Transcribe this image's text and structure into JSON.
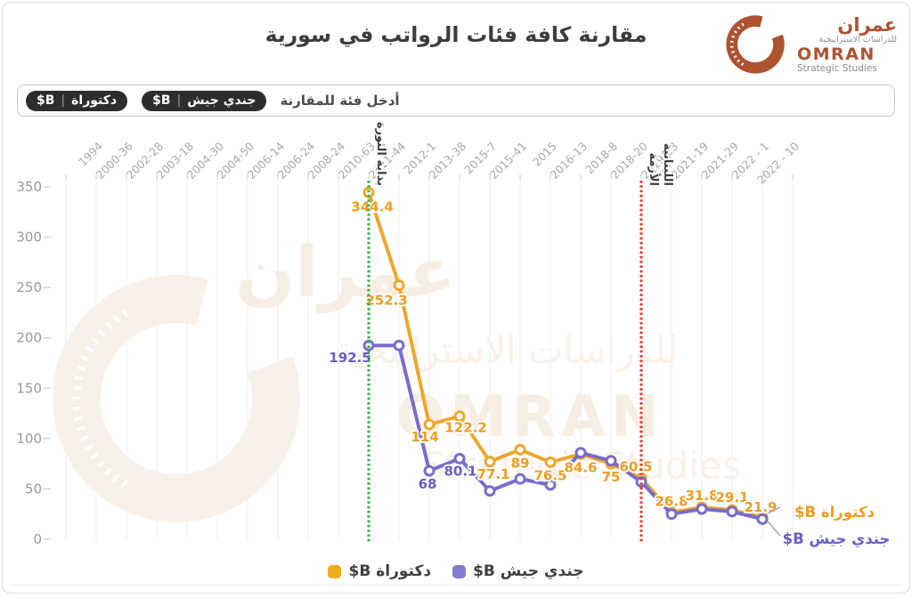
{
  "title": "مقارنة كافة فئات الرواتب في سورية",
  "logo": {
    "arabic_name": "عمران",
    "arabic_tagline": "للدراسات الاستراتيجية",
    "latin_name": "OMRAN",
    "latin_tagline": "Strategic Studies",
    "brand_color": "#AD5330"
  },
  "filter": {
    "placeholder": "أدخل فئة للمقارنة",
    "chips": [
      {
        "name": "دكتوراة",
        "unit": "B$"
      },
      {
        "name": "جندي جيش",
        "unit": "B$"
      }
    ]
  },
  "watermark": {
    "lines": [
      "عمران",
      "للدراسات الاستراتيجية",
      "OMRAN",
      "Strategic Studies"
    ]
  },
  "chart_data": {
    "type": "line",
    "categories": [
      "1994",
      "2000-36",
      "2002-28",
      "2003-18",
      "2004-30",
      "2004-50",
      "2006-14",
      "2006-24",
      "2008-24",
      "2010-63",
      "2011-44",
      "2012-1",
      "2013-38",
      "2015-7",
      "2015-41",
      "2015",
      "2016-13",
      "2018-8",
      "2018-20",
      "2019-23",
      "2021-19",
      "2021-29",
      "2022 - 1",
      "2022 - 10"
    ],
    "ylim": [
      0,
      350
    ],
    "yticks": [
      0,
      50,
      100,
      150,
      200,
      250,
      300,
      350
    ],
    "grid": "vertical-only",
    "series": [
      {
        "name": "دكتوراة B$",
        "color": "#EFA62B",
        "label_color": "#F09C20",
        "start_index": 9,
        "values": [
          344.4,
          252.3,
          114,
          122.2,
          77.1,
          89,
          76.5,
          84.6,
          75,
          60.5,
          26.8,
          31.8,
          29.1,
          21.9
        ],
        "point_labels": [
          "344.4",
          "252.3",
          "114",
          "122.2",
          "77.1",
          "89",
          "76.5",
          "84.6",
          "75",
          "60.5",
          "26.8",
          "31.8",
          "29.1",
          "21.9"
        ]
      },
      {
        "name": "جندي جيش B$",
        "color": "#7A6CCB",
        "label_color": "#685CC8",
        "start_index": 9,
        "values": [
          192.5,
          192.5,
          68,
          80.1,
          48,
          60,
          54,
          86,
          78,
          57,
          25,
          30,
          27.5,
          20
        ],
        "point_labels": [
          "192.5",
          "",
          "68",
          "80.1",
          "",
          "",
          "",
          "",
          "",
          "",
          "",
          "",
          "",
          ""
        ]
      }
    ],
    "annotations": [
      {
        "lines": [
          "بداية الثورة"
        ],
        "category": "2010-63",
        "line_color": "#35B14C"
      },
      {
        "lines": [
          "الأزمة",
          "اللبنانية"
        ],
        "category": "2018-20",
        "line_color": "#E43731"
      }
    ],
    "end_labels": [
      {
        "text": "دكتوراة B$",
        "color": "#F09C20"
      },
      {
        "text": "جندي جيش B$",
        "color": "#685CC8"
      }
    ],
    "legend": [
      {
        "label": "دكتوراة B$",
        "color": "#F1AB1B"
      },
      {
        "label": "جندي جيش B$",
        "color": "#837CD2"
      }
    ],
    "legend_position": "bottom"
  }
}
